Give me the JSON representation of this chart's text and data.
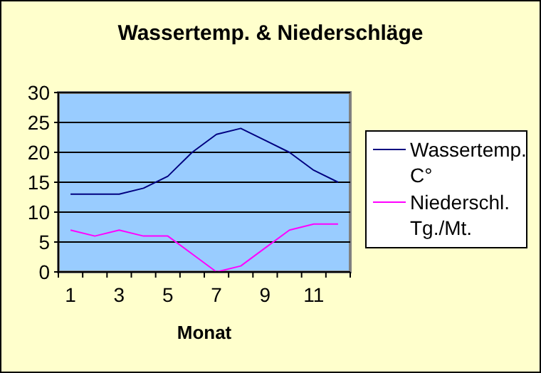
{
  "chart_data": {
    "type": "line",
    "title": "Wassertemp. & Niederschläge",
    "xlabel": "Monat",
    "categories": [
      "1",
      null,
      "3",
      null,
      "5",
      null,
      "7",
      null,
      "9",
      null,
      "11",
      null
    ],
    "series": [
      {
        "name": "Wassertemp. C°",
        "color": "#000080",
        "values": [
          13,
          13,
          13,
          14,
          16,
          20,
          23,
          24,
          22,
          20,
          17,
          15
        ]
      },
      {
        "name": "Niederschl. Tg./Mt.",
        "color": "#ff00ff",
        "values": [
          7,
          6,
          7,
          6,
          6,
          3,
          0,
          1,
          4,
          7,
          8,
          8
        ]
      }
    ],
    "ylim": [
      0,
      30
    ],
    "yticks": [
      0,
      5,
      10,
      15,
      20,
      25,
      30
    ],
    "grid": "y",
    "legend": "right",
    "marker": "none",
    "line_style": "solid"
  }
}
